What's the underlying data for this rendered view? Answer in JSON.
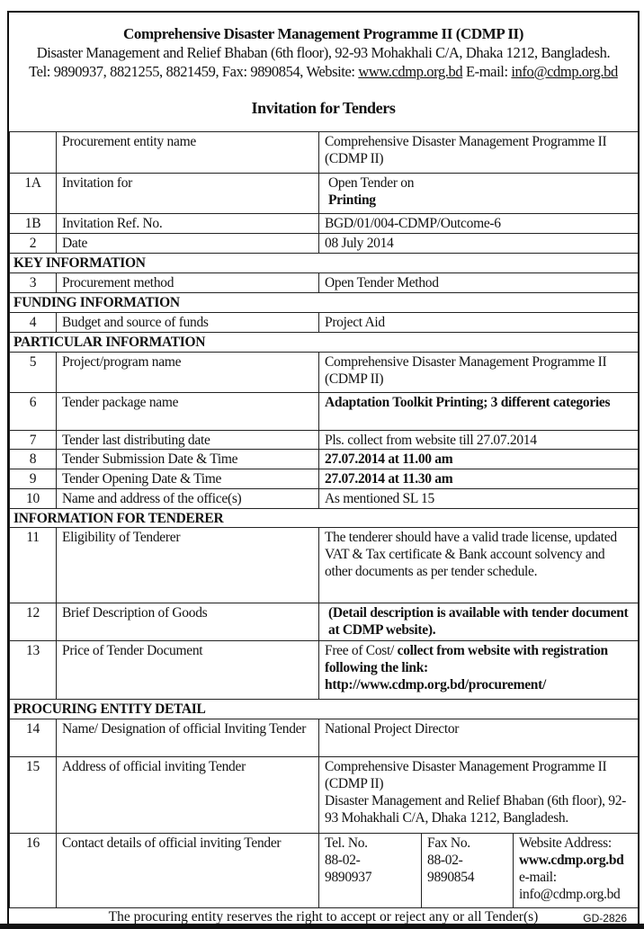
{
  "header": {
    "org": "Comprehensive Disaster Management Programme II (CDMP II)",
    "address": "Disaster Management and Relief Bhaban (6th floor), 92-93 Mohakhali C/A, Dhaka 1212, Bangladesh.",
    "contact_prefix": "Tel: 9890937, 8821255, 8821459, Fax: 9890854, Website: ",
    "website": "www.cdmp.org.bd",
    "email_label": " E-mail: ",
    "email": "info@cdmp.org.bd",
    "title": "Invitation for Tenders"
  },
  "rows": [
    {
      "no": "",
      "label": "Procurement entity name",
      "value": "Comprehensive Disaster Management Programme II (CDMP II)"
    },
    {
      "no": "1A",
      "label": "Invitation for",
      "value": "Open Tender on",
      "value_bold": "Printing"
    },
    {
      "no": "1B",
      "label": "Invitation Ref. No.",
      "value": "BGD/01/004-CDMP/Outcome-6"
    },
    {
      "no": "2",
      "label": "Date",
      "value": "08 July 2014"
    },
    {
      "section": "KEY INFORMATION"
    },
    {
      "no": "3",
      "label": "Procurement method",
      "value": "Open Tender Method"
    },
    {
      "section": "FUNDING INFORMATION"
    },
    {
      "no": "4",
      "label": "Budget and source of funds",
      "value": "Project Aid"
    },
    {
      "section": "PARTICULAR INFORMATION"
    },
    {
      "no": "5",
      "label": "Project/program name",
      "value": "Comprehensive Disaster Management Programme II (CDMP II)"
    },
    {
      "no": "6",
      "label": "Tender package name",
      "value_bold": "Adaptation Toolkit Printing; 3 different categories"
    },
    {
      "no": "7",
      "label": "Tender last distributing date",
      "value": "Pls. collect from website till 27.07.2014"
    },
    {
      "no": "8",
      "label": "Tender Submission Date & Time",
      "value_bold": "27.07.2014 at 11.00 am"
    },
    {
      "no": "9",
      "label": "Tender Opening Date & Time",
      "value_bold": "27.07.2014 at 11.30 am"
    },
    {
      "no": "10",
      "label": "Name and address of the office(s)",
      "value": "As mentioned SL 15"
    },
    {
      "section": "INFORMATION FOR TENDERER"
    },
    {
      "no": "11",
      "label": "Eligibility of Tenderer",
      "value": "The tenderer should have a valid trade license, updated VAT & Tax certificate & Bank account solvency and other documents as per tender schedule."
    },
    {
      "no": "12",
      "label": "Brief Description of Goods",
      "value_bold": "(Detail description is available with tender document at CDMP website)."
    },
    {
      "no": "13",
      "label": "Price of Tender Document",
      "value": "Free of Cost/",
      "value_bold": " collect from website with registration following the link:",
      "value_bold2": "http://www.cdmp.org.bd/procurement/"
    },
    {
      "section": "PROCURING ENTITY DETAIL"
    },
    {
      "no": "14",
      "label": "Name/ Designation of official Inviting Tender",
      "value": "National Project Director"
    },
    {
      "no": "15",
      "label": "Address of official inviting Tender",
      "value": "Comprehensive Disaster Management Programme II (CDMP II)",
      "value2": "Disaster Management and Relief Bhaban (6th floor), 92-93 Mohakhali C/A, Dhaka 1212, Bangladesh."
    }
  ],
  "contact_row": {
    "no": "16",
    "label": "Contact details of official inviting Tender",
    "tel_label": "Tel. No.",
    "tel": "88-02-9890937",
    "fax_label": "Fax No.",
    "fax": "88-02-9890854",
    "web_label": "Website Address:",
    "web": "www.cdmp.org.bd",
    "email_label": "e-mail:",
    "email": "info@cdmp.org.bd"
  },
  "footer": {
    "note": "The procuring entity reserves the right to accept or reject any or all Tender(s)",
    "code": "GD-2826"
  }
}
